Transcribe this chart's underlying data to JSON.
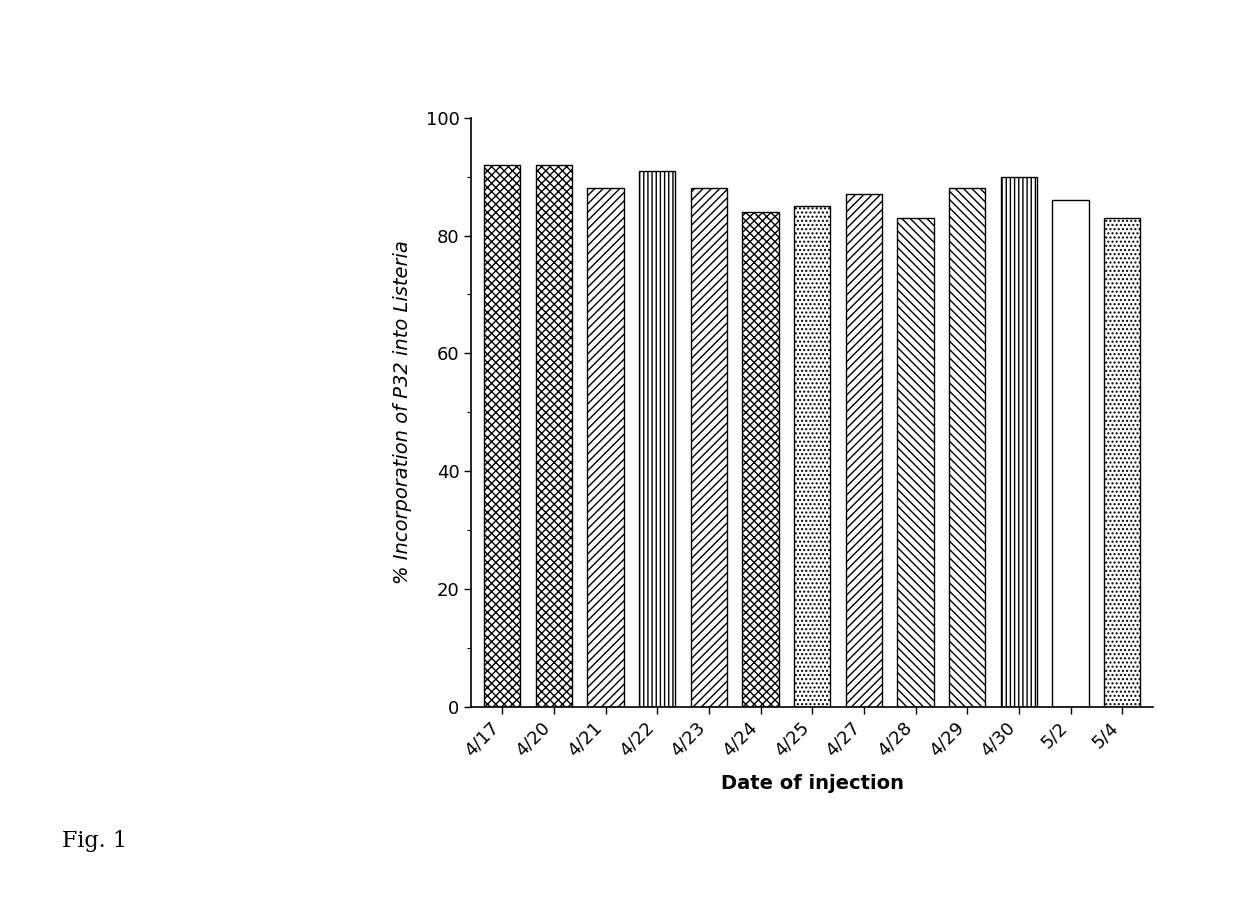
{
  "categories": [
    "4/17",
    "4/20",
    "4/21",
    "4/22",
    "4/23",
    "4/24",
    "4/25",
    "4/27",
    "4/28",
    "4/29",
    "4/30",
    "5/2",
    "5/4"
  ],
  "values": [
    92,
    92,
    88,
    91,
    88,
    84,
    85,
    87,
    83,
    88,
    90,
    86,
    83
  ],
  "ylabel": "% Incorporation of P32 into Listeria",
  "xlabel": "Date of injection",
  "ylim": [
    0,
    100
  ],
  "yticks": [
    0,
    20,
    40,
    60,
    80,
    100
  ],
  "fig_caption": "Fig. 1",
  "bar_color": "white",
  "edge_color": "black",
  "background_color": "white",
  "label_fontsize": 14,
  "tick_fontsize": 13,
  "caption_fontsize": 16
}
